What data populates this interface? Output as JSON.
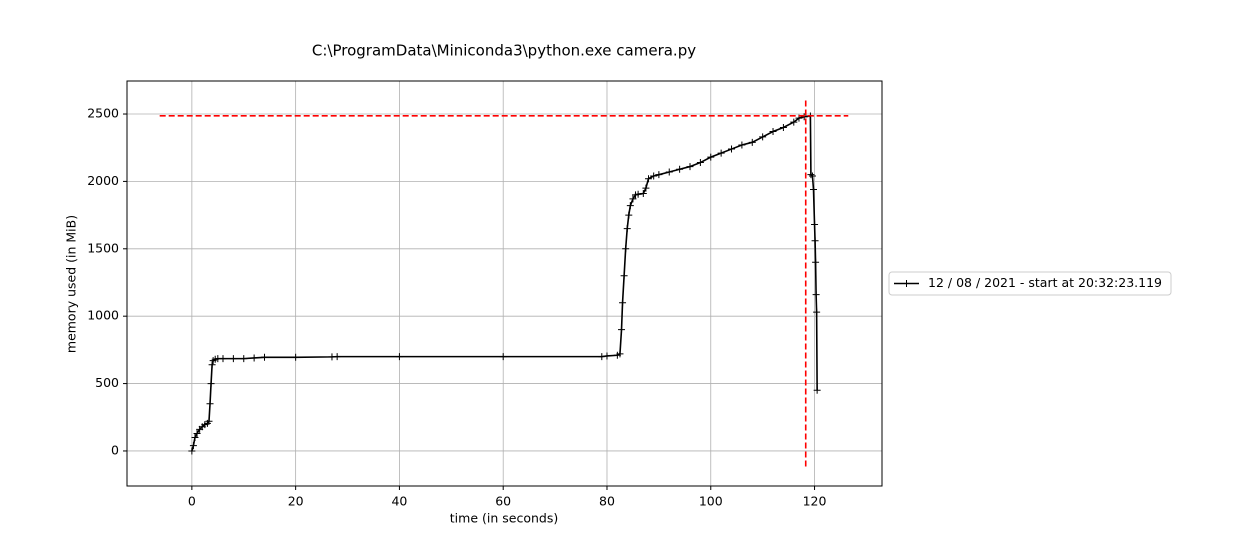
{
  "chart_data": {
    "type": "line",
    "title": "C:\\ProgramData\\Miniconda3\\python.exe camera.py",
    "x_label": "time (in seconds)",
    "y_label": "memory used (in MiB)",
    "xlim": [
      -12.5,
      133
    ],
    "ylim": [
      -260,
      2745
    ],
    "xticks": [
      0,
      20,
      40,
      60,
      80,
      100,
      120
    ],
    "yticks": [
      0,
      500,
      1000,
      1500,
      2000,
      2500
    ],
    "grid": true,
    "legend": "right",
    "series": [
      {
        "name": "12 / 08 / 2021 - start at 20:32:23.119",
        "color": "#000000",
        "x": [
          0,
          0.3,
          0.6,
          1,
          1.5,
          2,
          2.5,
          3,
          3.3,
          3.5,
          3.7,
          3.9,
          4.1,
          4.5,
          5,
          6,
          8,
          10,
          12,
          14,
          20,
          27,
          28,
          40,
          60,
          79,
          80,
          82,
          82.5,
          82.8,
          83,
          83.3,
          83.6,
          83.9,
          84.2,
          84.5,
          85,
          85.5,
          86,
          87,
          87.5,
          88,
          89,
          90,
          92,
          94,
          96,
          98,
          100,
          102,
          104,
          106,
          108,
          110,
          112,
          114,
          116,
          117,
          118,
          119.2,
          119.3,
          119.6,
          119.8,
          120,
          120.1,
          120.2,
          120.3,
          120.4,
          120.5
        ],
        "values": [
          0,
          40,
          100,
          130,
          160,
          180,
          195,
          205,
          220,
          350,
          500,
          640,
          670,
          680,
          685,
          685,
          685,
          685,
          690,
          695,
          695,
          698,
          700,
          700,
          700,
          700,
          705,
          710,
          720,
          900,
          1100,
          1300,
          1500,
          1650,
          1750,
          1820,
          1870,
          1900,
          1905,
          1910,
          1950,
          2020,
          2040,
          2050,
          2070,
          2090,
          2110,
          2140,
          2180,
          2210,
          2240,
          2270,
          2290,
          2330,
          2370,
          2400,
          2440,
          2470,
          2480,
          2485,
          2050,
          2040,
          1940,
          1680,
          1560,
          1400,
          1160,
          1030,
          450
        ]
      }
    ],
    "max_memory_line": {
      "value": 2487,
      "x_from": -6.2,
      "x_to": 126.5,
      "color": "#ff0000"
    },
    "max_time_line": {
      "value": 118.3,
      "y_from": -115,
      "y_to": 2615,
      "color": "#ff0000"
    }
  }
}
